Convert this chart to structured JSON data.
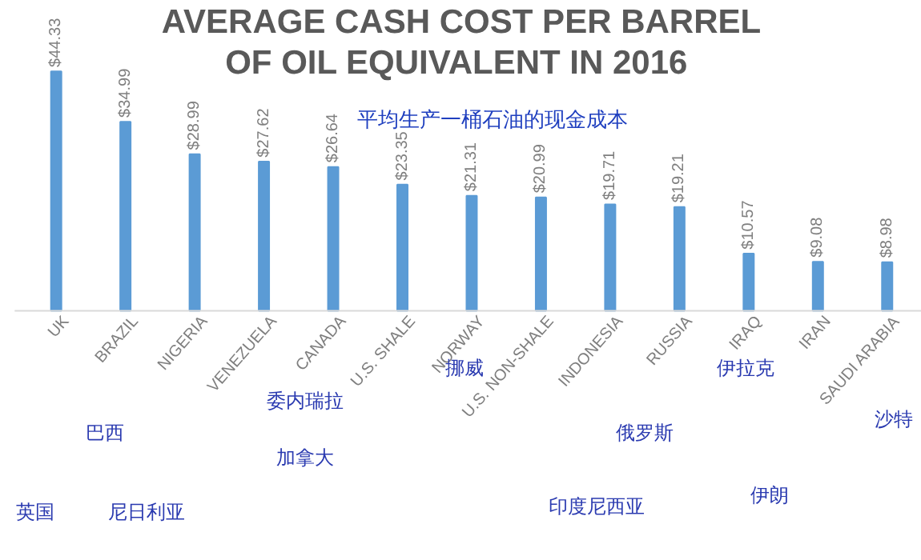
{
  "chart_data": {
    "type": "bar",
    "title": "AVERAGE CASH COST PER BARREL\nOF OIL EQUIVALENT  IN 2016",
    "subtitle": "平均生产一桶石油的现金成本",
    "categories": [
      "UK",
      "BRAZIL",
      "NIGERIA",
      "VENEZUELA",
      "CANADA",
      "U.S. SHALE",
      "NORWAY",
      "U.S. NON-SHALE",
      "INDONESIA",
      "RUSSIA",
      "IRAQ",
      "IRAN",
      "SAUDI ARABIA"
    ],
    "values": [
      44.33,
      34.99,
      28.99,
      27.62,
      26.64,
      23.35,
      21.31,
      20.99,
      19.71,
      19.21,
      10.57,
      9.08,
      8.98
    ],
    "value_labels": [
      "$44.33",
      "$34.99",
      "$28.99",
      "$27.62",
      "$26.64",
      "$23.35",
      "$21.31",
      "$20.99",
      "$19.71",
      "$19.21",
      "$10.57",
      "$9.08",
      "$8.98"
    ],
    "color": "#5b9bd5",
    "grid": false,
    "annotations": [
      "委内瑞拉",
      "挪威",
      "伊拉克",
      "巴西",
      "俄罗斯",
      "沙特",
      "加拿大",
      "伊朗",
      "英国",
      "尼日利亚",
      "印度尼西亚"
    ]
  }
}
